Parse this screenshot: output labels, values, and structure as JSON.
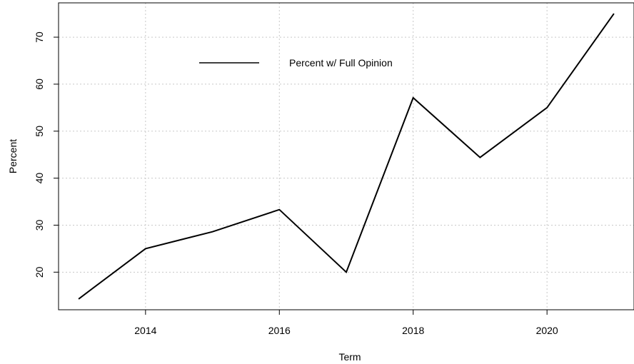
{
  "chart_data": {
    "type": "line",
    "title": "",
    "xlabel": "Term",
    "ylabel": "Percent",
    "x": [
      2013,
      2014,
      2015,
      2016,
      2017,
      2018,
      2019,
      2020,
      2021
    ],
    "series": [
      {
        "name": "Percent w/ Full Opinion",
        "values": [
          14.3,
          25.0,
          28.6,
          33.3,
          20.0,
          57.1,
          44.4,
          55.0,
          75.0
        ],
        "color": "#000000"
      }
    ],
    "xlim": [
      2012.7,
      2021.3
    ],
    "ylim": [
      12.0,
      77.3
    ],
    "x_ticks": [
      "2014",
      "2016",
      "2018",
      "2020"
    ],
    "y_ticks": [
      "20",
      "30",
      "40",
      "50",
      "60",
      "70"
    ],
    "grid": true,
    "legend_position": "top-left"
  }
}
